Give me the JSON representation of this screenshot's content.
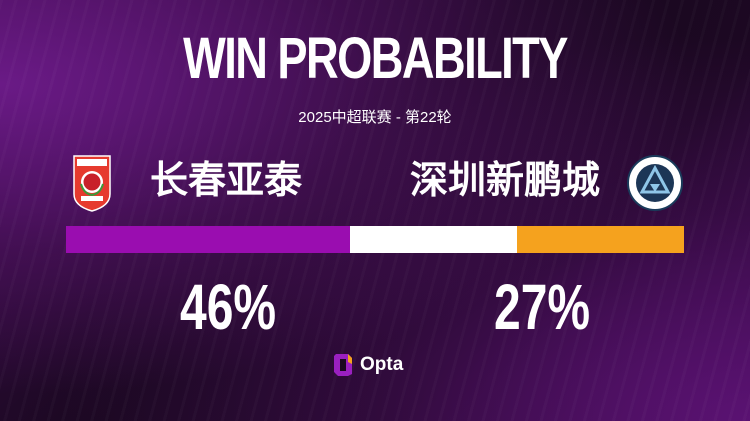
{
  "header": {
    "title": "WIN PROBABILITY",
    "subtitle": "2025中超联赛 - 第22轮"
  },
  "home": {
    "name": "长春亚泰",
    "percent_label": "46%",
    "logo_text": "CHANGCHUN YATAI FOOTBALL CLUB 长春亚泰 1996"
  },
  "away": {
    "name": "深圳新鹏城",
    "percent_label": "27%",
    "logo_text": "SHENZHEN PENG CITY FOOTBALL CLUB"
  },
  "chart_data": {
    "type": "bar",
    "stacked": true,
    "orientation": "horizontal",
    "categories": [
      "长春亚泰",
      "draw",
      "深圳新鹏城"
    ],
    "values": [
      46,
      27,
      27
    ],
    "colors": [
      "#9a0db0",
      "#ffffff",
      "#f5a21e"
    ],
    "xlim": [
      0,
      100
    ]
  },
  "footer": {
    "brand": "Opta"
  }
}
